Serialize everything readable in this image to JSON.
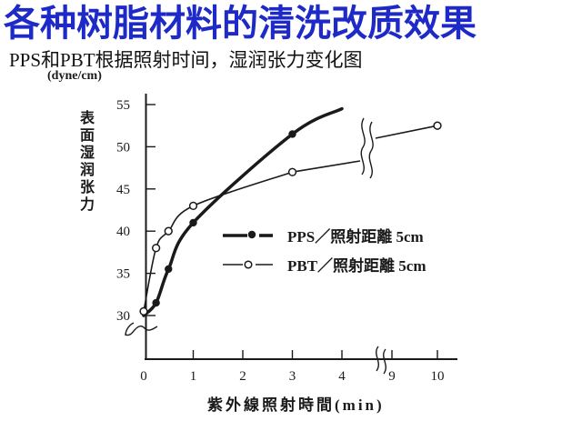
{
  "slide": {
    "title": "各种树脂材料的清洗改质效果",
    "subtitle": "PPS和PBT根据照射时间，湿润张力变化图"
  },
  "colors": {
    "title_blue": "#1e2ac8",
    "ink": "#1a1a1a",
    "background": "#ffffff"
  },
  "chart_data": {
    "type": "line",
    "title": "",
    "ylabel": "表面湿润张力",
    "y_unit": "(dyne/cm)",
    "xlabel": "紫外線照射時間(min)",
    "ylim": [
      30,
      55
    ],
    "y_ticks": [
      30,
      35,
      40,
      45,
      50,
      55
    ],
    "x_ticks": [
      0,
      1,
      2,
      3,
      4
    ],
    "x_ticks_after_break": [
      9,
      10
    ],
    "x_axis_break_between": [
      4,
      9
    ],
    "grid": false,
    "legend_position": "inside middle-right",
    "series": [
      {
        "name": "PPS／照射距離 5cm",
        "marker": "filled-circle",
        "line": "thick",
        "x": [
          0,
          0.25,
          0.5,
          1,
          3
        ],
        "y": [
          30,
          31.5,
          35.5,
          41,
          51.5
        ],
        "curve_extends_to": {
          "x": 4,
          "y": 54.5
        }
      },
      {
        "name": "PBT／照射距離 5cm",
        "marker": "open-circle",
        "line": "thin",
        "x": [
          0,
          0.25,
          0.5,
          1,
          3,
          10
        ],
        "y": [
          30.5,
          38,
          40,
          43,
          47,
          52.5
        ]
      }
    ]
  }
}
